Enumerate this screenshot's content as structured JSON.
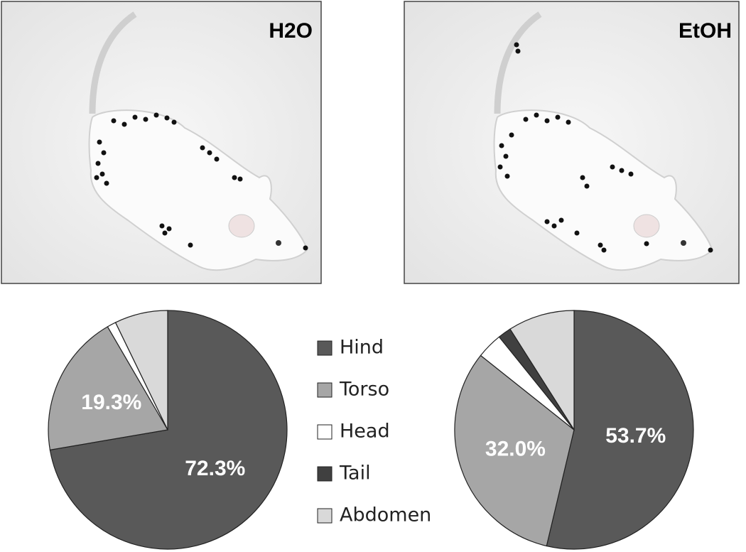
{
  "panel_labels": [
    "H2O",
    "EtOH"
  ],
  "chart_data": [
    {
      "type": "pie",
      "categories": [
        "Hind",
        "Torso",
        "Head",
        "Tail",
        "Abdomen"
      ],
      "values": [
        72.3,
        19.3,
        1.2,
        0,
        7.2
      ],
      "value_labels": [
        "72.3%",
        "19.3%",
        null,
        null,
        null
      ],
      "colors": [
        "#595959",
        "#a6a6a6",
        "#ffffff",
        "#404040",
        "#d9d9d9"
      ]
    },
    {
      "type": "pie",
      "categories": [
        "Hind",
        "Torso",
        "Head",
        "Tail",
        "Abdomen"
      ],
      "values": [
        53.7,
        32.0,
        3.5,
        1.8,
        9.0
      ],
      "value_labels": [
        "53.7%",
        "32.0%",
        null,
        null,
        null
      ],
      "colors": [
        "#595959",
        "#a6a6a6",
        "#ffffff",
        "#404040",
        "#d9d9d9"
      ]
    }
  ]
}
